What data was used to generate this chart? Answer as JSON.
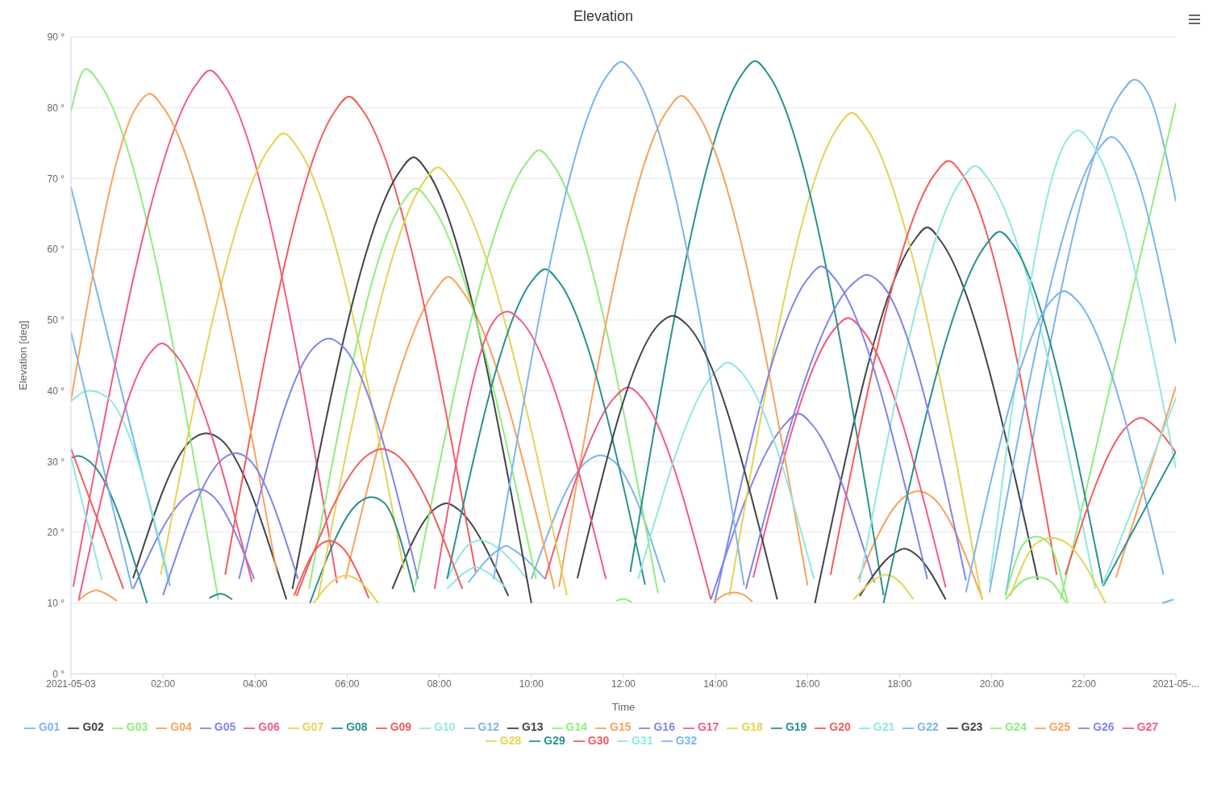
{
  "chart_data": {
    "type": "line",
    "title": "Elevation",
    "xlabel": "Time",
    "ylabel": "Elevation [deg]",
    "xlim": [
      0,
      24
    ],
    "xticks": [
      {
        "value": 0,
        "label": "2021-05-03"
      },
      {
        "value": 2,
        "label": "02:00"
      },
      {
        "value": 4,
        "label": "04:00"
      },
      {
        "value": 6,
        "label": "06:00"
      },
      {
        "value": 8,
        "label": "08:00"
      },
      {
        "value": 10,
        "label": "10:00"
      },
      {
        "value": 12,
        "label": "12:00"
      },
      {
        "value": 14,
        "label": "14:00"
      },
      {
        "value": 16,
        "label": "16:00"
      },
      {
        "value": 18,
        "label": "18:00"
      },
      {
        "value": 20,
        "label": "20:00"
      },
      {
        "value": 22,
        "label": "22:00"
      },
      {
        "value": 24,
        "label": "2021-05-..."
      }
    ],
    "ylim": [
      0,
      90
    ],
    "yticks": [
      {
        "value": 0,
        "label": "0 °"
      },
      {
        "value": 10,
        "label": "10 °"
      },
      {
        "value": 20,
        "label": "20 °"
      },
      {
        "value": 30,
        "label": "30 °"
      },
      {
        "value": 40,
        "label": "40 °"
      },
      {
        "value": 50,
        "label": "50 °"
      },
      {
        "value": 60,
        "label": "60 °"
      },
      {
        "value": 70,
        "label": "70 °"
      },
      {
        "value": 80,
        "label": "80 °"
      },
      {
        "value": 90,
        "label": "90 °"
      }
    ],
    "grid": "y",
    "legend": "bottom",
    "series": [
      {
        "name": "G01",
        "color": "#7cb5ec",
        "x": [
          0,
          2.15,
          2.5,
          10.0,
          11.2,
          11.5,
          11.8,
          12.9,
          15,
          20.3,
          22.8,
          23.1,
          23.4,
          24
        ],
        "values": [
          68.8,
          12.4,
          null,
          13.4,
          30,
          30.9,
          30,
          12.9,
          null,
          11,
          82,
          84,
          82,
          66.8
        ]
      },
      {
        "name": "G02",
        "color": "#434348",
        "x": [
          1.35,
          2.64,
          2.94,
          3.24,
          4.68,
          5.5,
          6.98,
          7.9,
          8.16,
          8.4,
          9.5,
          12,
          16.16,
          18.3,
          18.6,
          18.9,
          21.0
        ],
        "values": [
          13.5,
          33.2,
          34,
          33.2,
          10.5,
          null,
          12,
          23.3,
          24.1,
          23.3,
          11,
          null,
          10,
          61.1,
          63.1,
          61.1,
          13.3
        ]
      },
      {
        "name": "G03",
        "color": "#90ed7d",
        "x": [
          0,
          0.32,
          0.62,
          3.2,
          5,
          7.47,
          9.87,
          10.17,
          10.47,
          12.75,
          18,
          21.5,
          24
        ],
        "values": [
          79.5,
          85.5,
          83.5,
          10.5,
          null,
          12.3,
          72,
          74,
          72,
          11.4,
          null,
          10.5,
          80.7
        ]
      },
      {
        "name": "G04",
        "color": "#f7a35c",
        "x": [
          0.15,
          0.4,
          0.55,
          0.7,
          1.0,
          3,
          5.96,
          7.9,
          8.2,
          8.5,
          10.5,
          14,
          17.1,
          18.1,
          18.4,
          18.7,
          19.8
        ],
        "values": [
          10.3,
          11.5,
          11.8,
          11.5,
          10.3,
          null,
          13.4,
          54.1,
          56.1,
          54.1,
          12,
          null,
          13.4,
          25,
          25.8,
          25,
          10.5
        ]
      },
      {
        "name": "G05",
        "color": "#8085e9",
        "x": [
          1.35,
          2.55,
          2.8,
          3.05,
          3.98,
          8,
          13.9,
          15.5,
          15.8,
          16.1,
          17.45
        ],
        "values": [
          12,
          25.3,
          26.1,
          25.3,
          13.4,
          null,
          10.5,
          35.2,
          36.8,
          35.2,
          12.9
        ]
      },
      {
        "name": "G06",
        "color": "#f15c80",
        "x": [
          0.05,
          2.72,
          3.02,
          3.32,
          5.78,
          10,
          14.82,
          16.58,
          16.88,
          17.18,
          19.0
        ],
        "values": [
          12.3,
          83.3,
          85.3,
          83.3,
          12.8,
          null,
          13.6,
          48.7,
          50.3,
          48.7,
          12.2
        ]
      },
      {
        "name": "G07",
        "color": "#e4d354",
        "x": [
          1.95,
          4.32,
          4.62,
          4.92,
          7.23,
          10,
          14.3,
          16.66,
          16.96,
          17.26,
          19.78
        ],
        "values": [
          14,
          74.4,
          76.4,
          74.4,
          14.8,
          null,
          11,
          77.3,
          79.3,
          77.3,
          10.8
        ]
      },
      {
        "name": "G08",
        "color": "#2b908f",
        "x": [
          0,
          0.15,
          0.5,
          1.65,
          2.5,
          3.0,
          3.26,
          3.5,
          4.4,
          5.19,
          6.25,
          6.52,
          6.8,
          7.46,
          10,
          12.15,
          14.56,
          14.86,
          15.16,
          17.65
        ],
        "values": [
          30.5,
          30.8,
          29.4,
          10,
          null,
          10.7,
          11.3,
          10.5,
          null,
          10,
          24.2,
          25,
          24.2,
          11.5,
          null,
          14.4,
          84.6,
          86.6,
          84.6,
          11.1
        ]
      },
      {
        "name": "G09",
        "color": "#f45b5b",
        "x": [
          0,
          1.14,
          2,
          3.35,
          5.74,
          6.04,
          6.34,
          8.79,
          12,
          16.5,
          18.76,
          19.06,
          19.36,
          21.41
        ],
        "values": [
          31.8,
          12,
          null,
          14,
          79.6,
          81.6,
          79.6,
          14.4,
          null,
          14,
          70.6,
          72.5,
          70.6,
          14
        ]
      },
      {
        "name": "G10",
        "color": "#91e8e1",
        "x": [
          0,
          0.4,
          0.8,
          2.15,
          5,
          8.17,
          8.65,
          8.9,
          9.15,
          9.91,
          14,
          17.13,
          19.34,
          19.64,
          19.94,
          22.25
        ],
        "values": [
          38.5,
          40,
          39,
          12.9,
          null,
          13.4,
          18.3,
          18.9,
          18.3,
          13.4,
          null,
          12.9,
          69.8,
          71.8,
          69.8,
          12
        ]
      },
      {
        "name": "G12",
        "color": "#7cb5ec",
        "x": [
          0,
          1.33,
          5,
          8.63,
          9.3,
          9.45,
          9.6,
          10.3,
          15,
          19.95,
          22.3,
          22.6,
          22.9,
          24
        ],
        "values": [
          48.3,
          12,
          null,
          12.9,
          17.6,
          18.1,
          17.6,
          13.4,
          null,
          11.5,
          74,
          75.9,
          74,
          46.7
        ]
      },
      {
        "name": "G13",
        "color": "#434348",
        "x": [
          4.81,
          7.14,
          7.44,
          7.74,
          10.0,
          13,
          17.13,
          17.85,
          18.1,
          18.35,
          19.0
        ],
        "values": [
          12,
          71,
          73,
          71,
          10,
          null,
          11,
          16.9,
          17.7,
          16.9,
          10.5
        ]
      },
      {
        "name": "G14",
        "color": "#90ed7d",
        "x": [
          5.17,
          7.2,
          7.5,
          7.8,
          10.1,
          15,
          20.3,
          20.72,
          20.97,
          21.22,
          21.65
        ],
        "values": [
          12,
          66.6,
          68.6,
          66.6,
          13.4,
          null,
          11,
          18.6,
          19.4,
          18.6,
          10
        ]
      },
      {
        "name": "G15",
        "color": "#f7a35c",
        "x": [
          0,
          1.41,
          1.71,
          2.01,
          4.47,
          7,
          10.6,
          12.96,
          13.26,
          13.56,
          16.0
        ],
        "values": [
          38.6,
          80,
          82,
          80,
          14.4,
          null,
          12.3,
          79.7,
          81.7,
          79.7,
          12.5
        ]
      },
      {
        "name": "G16",
        "color": "#8085e9",
        "x": [
          2.0,
          3.3,
          3.58,
          3.85,
          4.93,
          9,
          13.98,
          16.0,
          16.3,
          16.6,
          18.6
        ],
        "values": [
          11.1,
          30.4,
          31.2,
          30.4,
          13.4,
          null,
          10,
          55.8,
          57.6,
          55.8,
          13.4
        ]
      },
      {
        "name": "G17",
        "color": "#f15c80",
        "x": [
          0.17,
          1.7,
          1.98,
          2.26,
          3.93,
          6,
          10.3,
          11.8,
          12.1,
          12.4,
          13.9
        ],
        "values": [
          10.5,
          45.2,
          46.7,
          45.2,
          13,
          null,
          13.4,
          39,
          40.5,
          39,
          10.5
        ]
      },
      {
        "name": "G18",
        "color": "#e4d354",
        "x": [
          5.36,
          7.67,
          7.97,
          8.27,
          10.77,
          14,
          17.0,
          17.45,
          17.7,
          17.95,
          18.3
        ],
        "values": [
          10.5,
          69.6,
          71.6,
          69.6,
          11.1,
          null,
          10.5,
          13.3,
          14,
          13.3,
          10.5
        ]
      },
      {
        "name": "G19",
        "color": "#2b908f",
        "x": [
          8.17,
          10.0,
          10.3,
          10.6,
          12.47,
          15,
          17.65,
          19.87,
          20.17,
          20.47,
          22.42
        ],
        "values": [
          13.4,
          55.4,
          57.2,
          55.4,
          12.6,
          null,
          10,
          60.6,
          62.5,
          60.6,
          12.4
        ]
      },
      {
        "name": "G20",
        "color": "#f45b5b",
        "x": [
          4.85,
          5.37,
          5.62,
          5.87,
          6.47,
          12,
          21.6,
          22.94,
          23.24,
          23.54,
          24
        ],
        "values": [
          11.1,
          18,
          18.8,
          18,
          10.7,
          null,
          14,
          35,
          36.2,
          35,
          31.3
        ]
      },
      {
        "name": "G21",
        "color": "#91e8e1",
        "x": [
          0,
          0.67,
          4,
          8.17,
          8.6,
          8.79,
          9.0,
          9.45,
          11,
          12.32,
          14.0,
          14.27,
          14.55,
          16.14,
          18,
          19.95,
          21.58,
          21.88,
          22.18,
          24
        ],
        "values": [
          30.6,
          13.2,
          null,
          12,
          14.5,
          15.1,
          14.5,
          12.2,
          null,
          13.4,
          42.7,
          44,
          42.7,
          13.4,
          null,
          12.9,
          74.9,
          76.8,
          74.9,
          29
        ]
      },
      {
        "name": "G22",
        "color": "#7cb5ec",
        "x": [
          9.18,
          11.65,
          11.95,
          12.25,
          14.62,
          17,
          19.44,
          21.3,
          21.57,
          21.85,
          23.73
        ],
        "values": [
          13.4,
          84.6,
          86.5,
          84.6,
          12.5,
          null,
          11.5,
          52.8,
          54.1,
          52.8,
          14
        ]
      },
      {
        "name": "G23",
        "color": "#434348",
        "x": [
          11.0,
          12.77,
          13.07,
          13.37,
          15.34
        ],
        "values": [
          13.5,
          49.4,
          50.6,
          49.4,
          10.5
        ]
      },
      {
        "name": "G24",
        "color": "#90ed7d",
        "x": [
          11.84,
          12.0,
          12.18,
          16,
          20.3,
          20.72,
          20.97,
          21.22,
          21.62
        ],
        "values": [
          10.3,
          10.6,
          10.1,
          null,
          10.5,
          13.3,
          13.7,
          13.3,
          10
        ]
      },
      {
        "name": "G25",
        "color": "#f7a35c",
        "x": [
          13.98,
          14.2,
          14.4,
          14.6,
          14.8,
          18,
          22.7,
          24
        ],
        "values": [
          10.2,
          11.2,
          11.5,
          11.2,
          10.2,
          null,
          13.6,
          40.6
        ]
      },
      {
        "name": "G26",
        "color": "#8085e9",
        "x": [
          3.65,
          5.3,
          5.6,
          5.9,
          7.54,
          11,
          14.66,
          16.99,
          17.29,
          17.59,
          19.44
        ],
        "values": [
          13.4,
          46.3,
          47.4,
          46.3,
          13.4,
          null,
          12,
          55.2,
          56.4,
          55.2,
          13.2
        ]
      },
      {
        "name": "G27",
        "color": "#f15c80",
        "x": [
          7.9,
          9.2,
          9.48,
          9.76,
          11.62
        ],
        "values": [
          12,
          50,
          51.2,
          50,
          13.4
        ]
      },
      {
        "name": "G28",
        "color": "#e4d354",
        "x": [
          5.27,
          5.75,
          5.97,
          6.2,
          6.67,
          12,
          20.4,
          21.0,
          21.3,
          21.6,
          22.47
        ],
        "values": [
          10,
          13.4,
          13.9,
          13.4,
          10,
          null,
          11,
          18.6,
          19.2,
          18.6,
          10
        ]
      },
      {
        "name": "G29",
        "color": "#2b908f",
        "x": [
          22.42,
          24
        ],
        "values": [
          12.4,
          31.4
        ]
      },
      {
        "name": "G30",
        "color": "#f45b5b",
        "x": [
          4.9,
          6.46,
          6.76,
          7.06,
          8.5
        ],
        "values": [
          11,
          31,
          31.8,
          31,
          12
        ]
      },
      {
        "name": "G31",
        "color": "#91e8e1",
        "x": [
          22.4,
          24
        ],
        "values": [
          12.4,
          39
        ]
      },
      {
        "name": "G32",
        "color": "#7cb5ec",
        "x": [
          23.7,
          23.95
        ],
        "values": [
          10,
          10.5
        ]
      }
    ]
  }
}
